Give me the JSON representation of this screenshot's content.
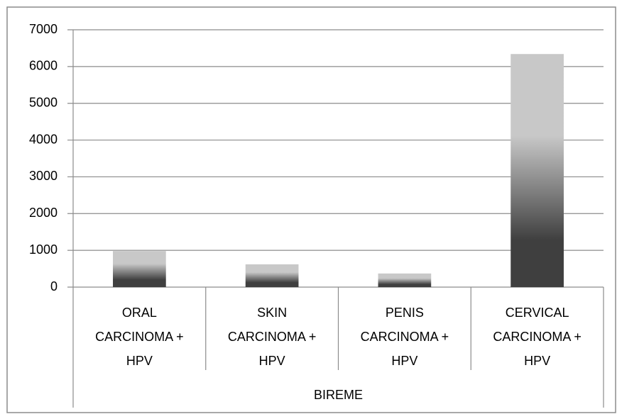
{
  "chart_data": {
    "type": "bar",
    "categories": [
      "ORAL CARCINOMA + HPV",
      "SKIN CARCINOMA + HPV",
      "PENIS CARCINOMA + HPV",
      "CERVICAL CARCINOMA + HPV"
    ],
    "category_group": "BIREME",
    "values": [
      980,
      620,
      370,
      6340
    ],
    "gradient": [
      "#c8c8c8",
      "#3f3f3f"
    ],
    "ylim": [
      0,
      7000
    ],
    "yticks": [
      0,
      1000,
      2000,
      3000,
      4000,
      5000,
      6000,
      7000
    ],
    "grid": true
  }
}
